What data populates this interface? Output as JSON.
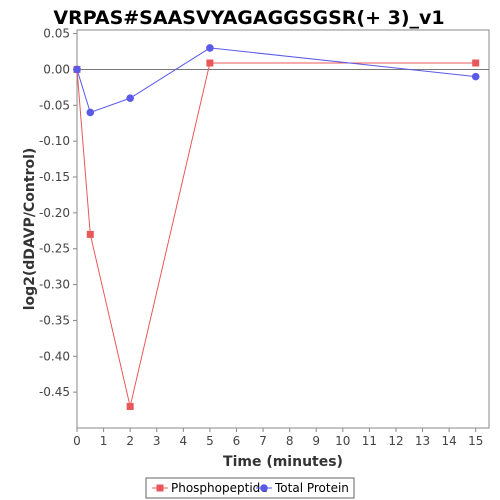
{
  "chart_data": {
    "type": "line",
    "title": "VRPAS#SAASVYAGAGGSGSR(+ 3)_v1",
    "xlabel": "Time (minutes)",
    "ylabel": "log2(dDAVP/Control)",
    "xlim": [
      0,
      15.5
    ],
    "ylim": [
      -0.5,
      0.055
    ],
    "x_ticks": [
      0,
      1,
      2,
      3,
      4,
      5,
      6,
      7,
      8,
      9,
      10,
      11,
      12,
      13,
      14,
      15
    ],
    "y_ticks": [
      0.05,
      0.0,
      -0.05,
      -0.1,
      -0.15,
      -0.2,
      -0.25,
      -0.3,
      -0.35,
      -0.4,
      -0.45
    ],
    "y_tick_labels": [
      "0.05",
      "0.00",
      "-0.05",
      "-0.10",
      "-0.15",
      "-0.20",
      "-0.25",
      "-0.30",
      "-0.35",
      "-0.40",
      "-0.45"
    ],
    "grid": false,
    "zero_line": true,
    "legend_position": "bottom",
    "series": [
      {
        "name": "Phosphopeptide",
        "marker": "square",
        "color": "#e8585a",
        "x": [
          0,
          0.5,
          2,
          5,
          15
        ],
        "y": [
          0.0,
          -0.23,
          -0.47,
          0.009,
          0.009
        ]
      },
      {
        "name": "Total Protein",
        "marker": "circle",
        "color": "#5a5ae8",
        "x": [
          0,
          0.5,
          2,
          5,
          15
        ],
        "y": [
          0.0,
          -0.06,
          -0.04,
          0.03,
          -0.01
        ]
      }
    ]
  }
}
